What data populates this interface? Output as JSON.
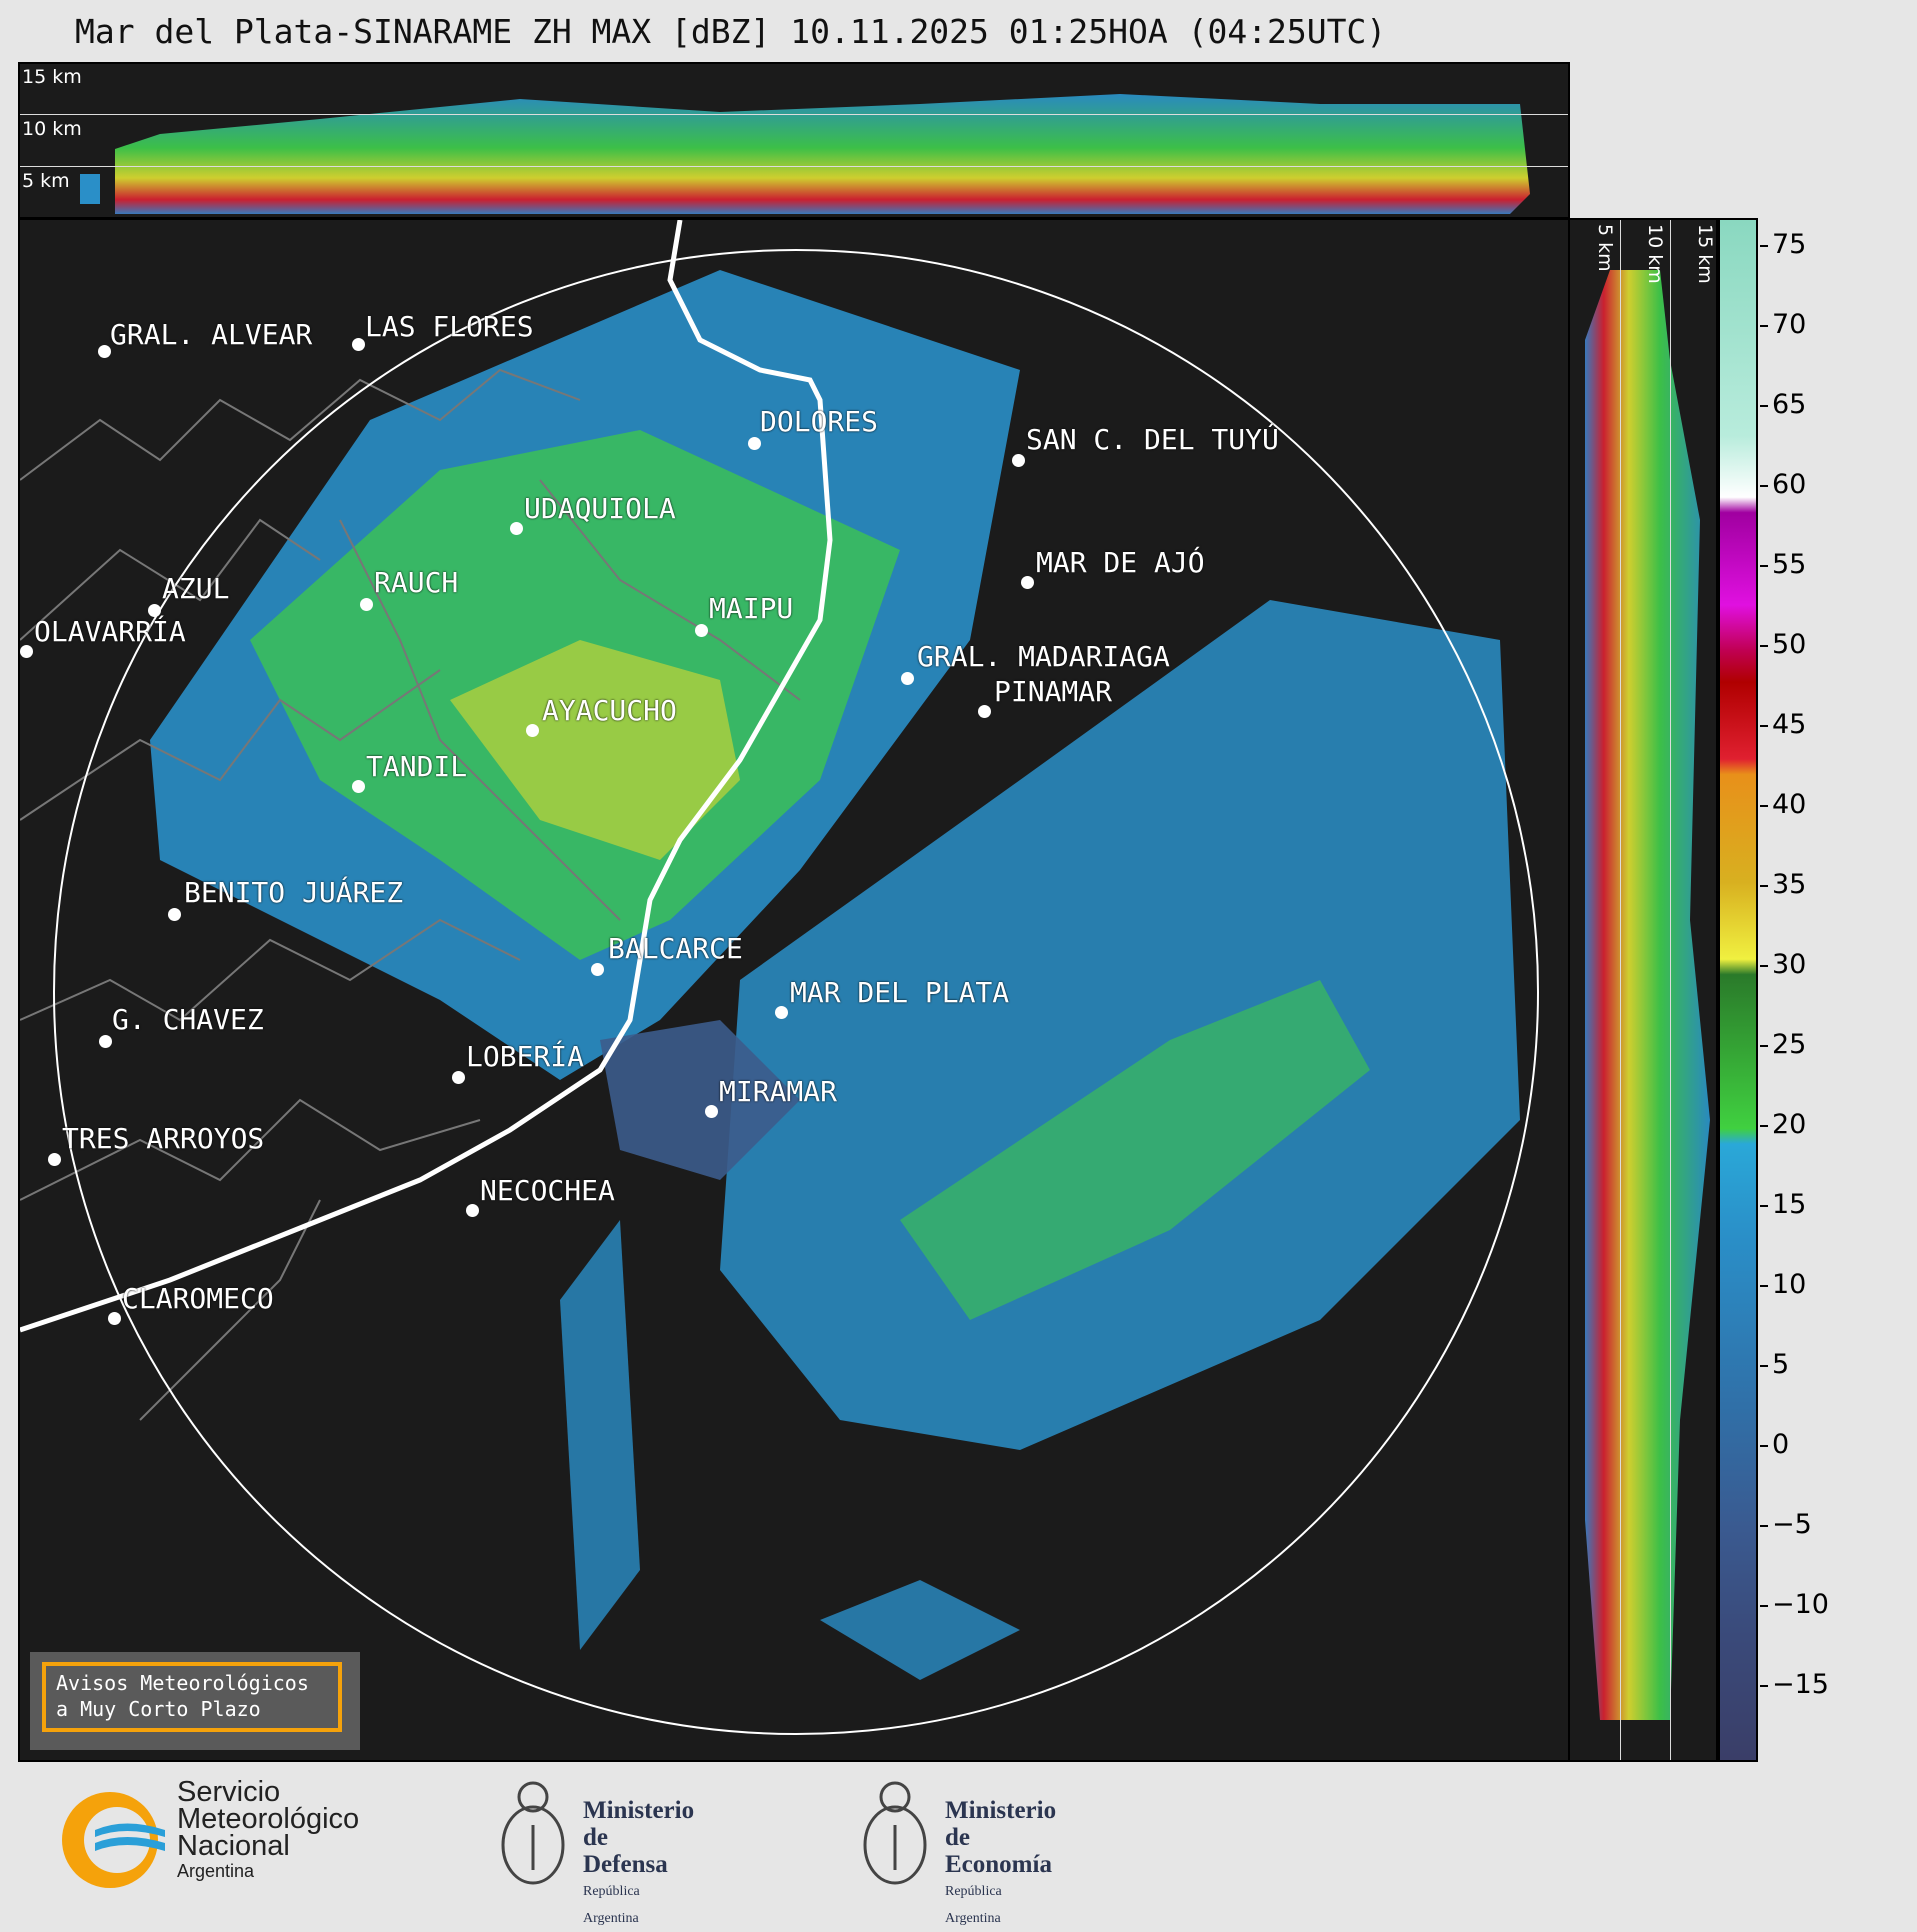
{
  "title": "Mar del Plata-SINARAME ZH MAX [dBZ] 10.11.2025 01:25HOA (04:25UTC)",
  "top_panel": {
    "height_labels": [
      "15 km",
      "10 km",
      "5 km"
    ]
  },
  "right_panel": {
    "height_labels": [
      "5 km",
      "10 km",
      "15 km"
    ]
  },
  "colorbar": {
    "ticks": [
      "75",
      "70",
      "65",
      "60",
      "55",
      "50",
      "45",
      "40",
      "35",
      "30",
      "25",
      "20",
      "15",
      "10",
      "5",
      "0",
      "−5",
      "−10",
      "−15"
    ]
  },
  "cities": [
    {
      "name": "GRAL. ALVEAR",
      "lon": -60.01,
      "lat": -36.02
    },
    {
      "name": "LAS FLORES",
      "lon": -59.1,
      "lat": -36.01
    },
    {
      "name": "DOLORES",
      "lon": -57.68,
      "lat": -36.31
    },
    {
      "name": "SAN C. DEL TUYÚ",
      "lon": -56.7,
      "lat": -36.3
    },
    {
      "name": "UDAQUIOLA",
      "lon": -58.48,
      "lat": -36.56
    },
    {
      "name": "RAUCH",
      "lon": -59.09,
      "lat": -36.77
    },
    {
      "name": "AZUL",
      "lon": -59.86,
      "lat": -36.78
    },
    {
      "name": "OLAVARRÍA",
      "lon": -60.32,
      "lat": -36.89
    },
    {
      "name": "MAIPU",
      "lon": -57.88,
      "lat": -36.86
    },
    {
      "name": "MAR DE AJÓ",
      "lon": -56.68,
      "lat": -36.72
    },
    {
      "name": "GRAL. MADARIAGA",
      "lon": -57.14,
      "lat": -37.0
    },
    {
      "name": "PINAMAR",
      "lon": -56.86,
      "lat": -37.11
    },
    {
      "name": "AYACUCHO",
      "lon": -58.49,
      "lat": -37.15
    },
    {
      "name": "TANDIL",
      "lon": -59.13,
      "lat": -37.32
    },
    {
      "name": "BENITO JUÁREZ",
      "lon": -59.8,
      "lat": -37.67
    },
    {
      "name": "BALCARCE",
      "lon": -58.26,
      "lat": -37.85
    },
    {
      "name": "MAR DEL PLATA",
      "lon": -57.55,
      "lat": -38.0
    },
    {
      "name": "G. CHAVEZ",
      "lon": -60.1,
      "lat": -37.87
    },
    {
      "name": "LOBERÍA",
      "lon": -58.78,
      "lat": -38.16
    },
    {
      "name": "MIRAMAR",
      "lon": -57.84,
      "lat": -38.27
    },
    {
      "name": "TRES ARROYOS",
      "lon": -60.28,
      "lat": -38.38
    },
    {
      "name": "NECOCHEA",
      "lon": -58.74,
      "lat": -38.55
    },
    {
      "name": "CLAROMECO",
      "lon": -60.07,
      "lat": -38.86
    }
  ],
  "avisos": {
    "line1": "Avisos Meteorológicos",
    "line2": "a Muy Corto Plazo"
  },
  "logos": {
    "smn": {
      "line1": "Servicio",
      "line2": "Meteorológico",
      "line3": "Nacional",
      "line4": "Argentina"
    },
    "defensa": {
      "line1": "Ministerio",
      "line2": "de Defensa",
      "line3": "República Argentina"
    },
    "economia": {
      "line1": "Ministerio",
      "line2": "de Economía",
      "line3": "República Argentina"
    }
  },
  "colors": {
    "panel_bg": "#1b1b1b",
    "aviso_border": "#f5a20b",
    "smn_orange": "#f5a20b",
    "smn_blue": "#2a9fd8"
  }
}
